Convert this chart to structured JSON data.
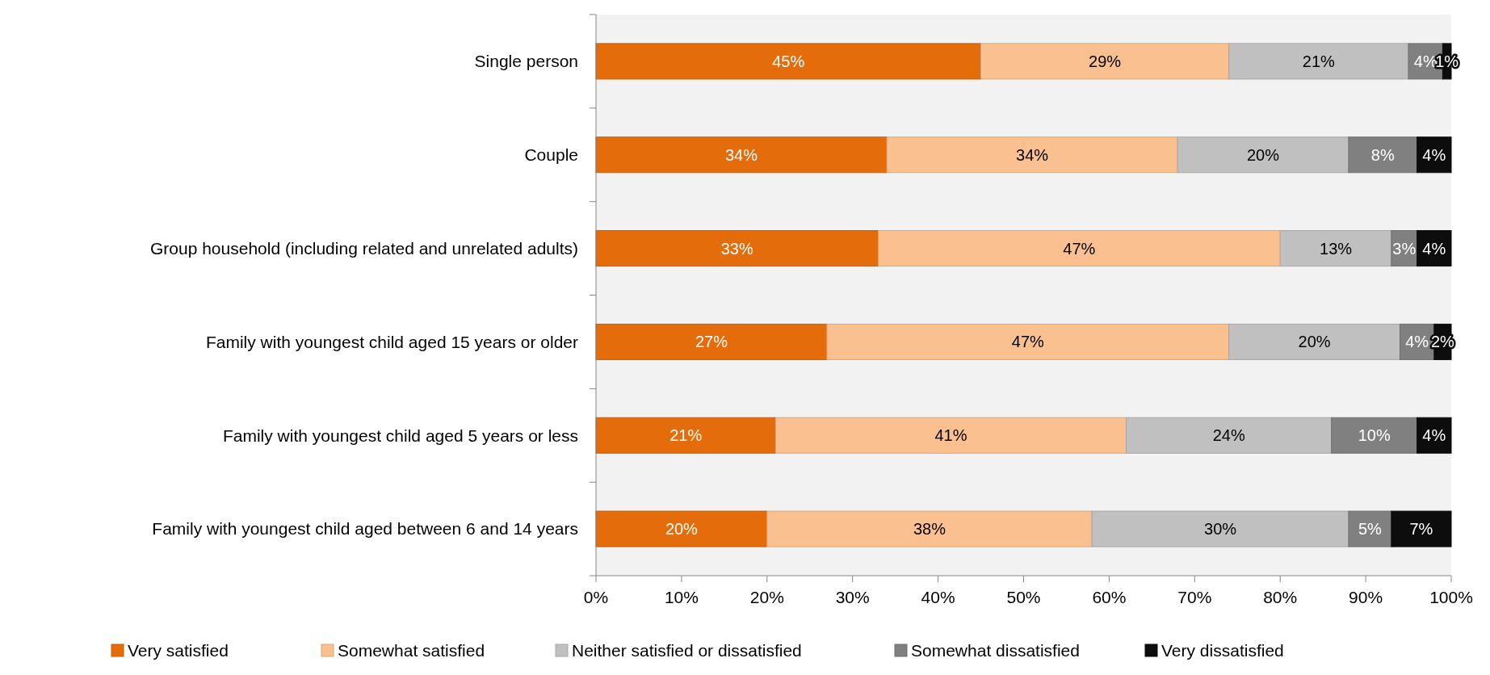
{
  "chart_data": {
    "type": "bar",
    "orientation": "horizontal",
    "stacked": true,
    "legend": "bottom",
    "grid": false,
    "categories": [
      "Single person",
      "Couple",
      "Group household (including related and unrelated adults)",
      "Family with youngest child aged 15 years or older",
      "Family with youngest child aged 5 years or less",
      "Family with youngest child aged between 6 and 14 years"
    ],
    "xlim": [
      0,
      100
    ],
    "xticks": [
      {
        "value": 0,
        "label": "0%"
      },
      {
        "value": 10,
        "label": "10%"
      },
      {
        "value": 20,
        "label": "20%"
      },
      {
        "value": 30,
        "label": "30%"
      },
      {
        "value": 40,
        "label": "40%"
      },
      {
        "value": 50,
        "label": "50%"
      },
      {
        "value": 60,
        "label": "60%"
      },
      {
        "value": 70,
        "label": "70%"
      },
      {
        "value": 80,
        "label": "80%"
      },
      {
        "value": 90,
        "label": "90%"
      },
      {
        "value": 100,
        "label": "100%"
      }
    ],
    "series": [
      {
        "name": "Very satisfied",
        "color": "#e46c0a",
        "values": [
          45,
          34,
          33,
          27,
          21,
          20
        ],
        "value_labels": [
          "45%",
          "34%",
          "33%",
          "27%",
          "21%",
          "20%"
        ]
      },
      {
        "name": "Somewhat satisfied",
        "color": "#fac090",
        "values": [
          29,
          34,
          47,
          47,
          41,
          38
        ],
        "value_labels": [
          "29%",
          "34%",
          "47%",
          "47%",
          "41%",
          "38%"
        ]
      },
      {
        "name": "Neither satisfied or dissatisfied",
        "color": "#c0c0c0",
        "values": [
          21,
          20,
          13,
          20,
          24,
          30
        ],
        "value_labels": [
          "21%",
          "20%",
          "13%",
          "20%",
          "24%",
          "30%"
        ]
      },
      {
        "name": "Somewhat dissatisfied",
        "color": "#808080",
        "values": [
          4,
          8,
          3,
          4,
          10,
          5
        ],
        "value_labels": [
          "4%",
          "8%",
          "3%",
          "4%",
          "10%",
          "5%"
        ]
      },
      {
        "name": "Very dissatisfied",
        "color": "#0d0d0d",
        "values": [
          1,
          4,
          4,
          2,
          4,
          7
        ],
        "value_labels": [
          "1%",
          "4%",
          "4%",
          "2%",
          "4%",
          "7%"
        ]
      }
    ]
  }
}
